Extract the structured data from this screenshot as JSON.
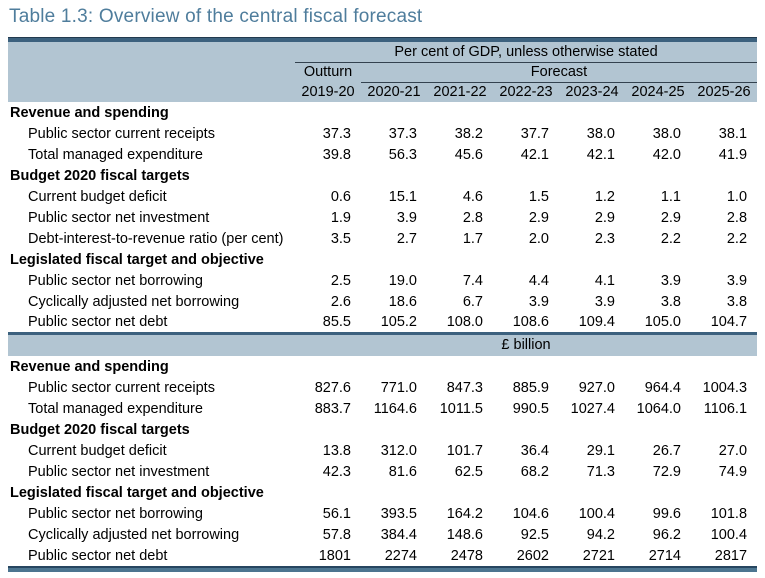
{
  "title": "Table 1.3: Overview of the central fiscal forecast",
  "header": {
    "unit_caption_pct": "Per cent of GDP, unless otherwise stated",
    "outturn": "Outturn",
    "forecast": "Forecast",
    "years": [
      "2019-20",
      "2020-21",
      "2021-22",
      "2022-23",
      "2023-24",
      "2024-25",
      "2025-26"
    ]
  },
  "unit_caption_billion": "£ billion",
  "pct_sections": [
    {
      "header": "Revenue and spending",
      "rows": [
        {
          "label": "Public sector current receipts",
          "values": [
            "37.3",
            "37.3",
            "38.2",
            "37.7",
            "38.0",
            "38.0",
            "38.1"
          ]
        },
        {
          "label": "Total managed expenditure",
          "values": [
            "39.8",
            "56.3",
            "45.6",
            "42.1",
            "42.1",
            "42.0",
            "41.9"
          ]
        }
      ]
    },
    {
      "header": "Budget 2020 fiscal targets",
      "rows": [
        {
          "label": "Current budget deficit",
          "values": [
            "0.6",
            "15.1",
            "4.6",
            "1.5",
            "1.2",
            "1.1",
            "1.0"
          ]
        },
        {
          "label": "Public sector net investment",
          "values": [
            "1.9",
            "3.9",
            "2.8",
            "2.9",
            "2.9",
            "2.9",
            "2.8"
          ]
        },
        {
          "label": "Debt-interest-to-revenue ratio (per cent)",
          "values": [
            "3.5",
            "2.7",
            "1.7",
            "2.0",
            "2.3",
            "2.2",
            "2.2"
          ]
        }
      ]
    },
    {
      "header": "Legislated fiscal target and objective",
      "rows": [
        {
          "label": "Public sector net borrowing",
          "values": [
            "2.5",
            "19.0",
            "7.4",
            "4.4",
            "4.1",
            "3.9",
            "3.9"
          ]
        },
        {
          "label": "Cyclically adjusted net borrowing",
          "values": [
            "2.6",
            "18.6",
            "6.7",
            "3.9",
            "3.9",
            "3.8",
            "3.8"
          ]
        },
        {
          "label": "Public sector net debt",
          "values": [
            "85.5",
            "105.2",
            "108.0",
            "108.6",
            "109.4",
            "105.0",
            "104.7"
          ]
        }
      ]
    }
  ],
  "billion_sections": [
    {
      "header": "Revenue and spending",
      "rows": [
        {
          "label": "Public sector current receipts",
          "values": [
            "827.6",
            "771.0",
            "847.3",
            "885.9",
            "927.0",
            "964.4",
            "1004.3"
          ]
        },
        {
          "label": "Total managed expenditure",
          "values": [
            "883.7",
            "1164.6",
            "1011.5",
            "990.5",
            "1027.4",
            "1064.0",
            "1106.1"
          ]
        }
      ]
    },
    {
      "header": "Budget 2020 fiscal targets",
      "rows": [
        {
          "label": "Current budget deficit",
          "values": [
            "13.8",
            "312.0",
            "101.7",
            "36.4",
            "29.1",
            "26.7",
            "27.0"
          ]
        },
        {
          "label": "Public sector net investment",
          "values": [
            "42.3",
            "81.6",
            "62.5",
            "68.2",
            "71.3",
            "72.9",
            "74.9"
          ]
        }
      ]
    },
    {
      "header": "Legislated fiscal target and objective",
      "rows": [
        {
          "label": "Public sector net borrowing",
          "values": [
            "56.1",
            "393.5",
            "164.2",
            "104.6",
            "100.4",
            "99.6",
            "101.8"
          ]
        },
        {
          "label": "Cyclically adjusted net borrowing",
          "values": [
            "57.8",
            "384.4",
            "148.6",
            "92.5",
            "94.2",
            "96.2",
            "100.4"
          ]
        },
        {
          "label": "Public sector net debt",
          "values": [
            "1801",
            "2274",
            "2478",
            "2602",
            "2721",
            "2714",
            "2817"
          ]
        }
      ]
    }
  ],
  "colors": {
    "title_text": "#4f7d9c",
    "band_background": "#b2c5d2",
    "rule_dark_navy": "#274660",
    "rule_steel_blue": "#4c7590",
    "header_underline": "#33424f",
    "body_text": "#000000"
  }
}
